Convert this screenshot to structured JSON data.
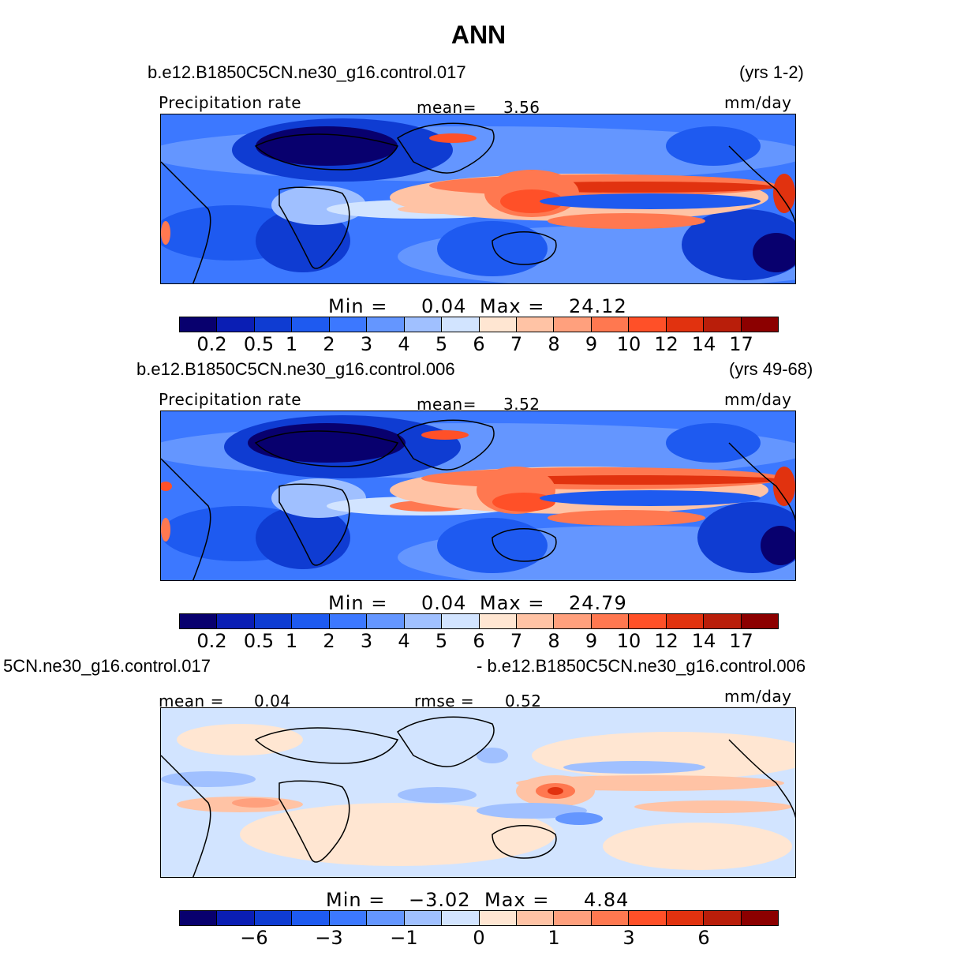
{
  "title": "ANN",
  "palette": [
    "#08006e",
    "#0a1eb4",
    "#0f3cd2",
    "#1e5af0",
    "#3c78ff",
    "#6496ff",
    "#a0c0ff",
    "#d2e4ff",
    "#ffe6d2",
    "#ffc3a5",
    "#ffa07d",
    "#ff7850",
    "#ff5028",
    "#e1320f",
    "#b91e0a",
    "#8c0000"
  ],
  "panel1": {
    "case": "b.e12.B1850C5CN.ne30_g16.control.017",
    "years": "(yrs 1-2)",
    "variable": "Precipitation  rate",
    "mean_label": "mean=",
    "mean_value": "3.56",
    "units": "mm/day",
    "min_label": "Min  =",
    "min_value": "0.04",
    "max_label": "Max  =",
    "max_value": "24.12",
    "ticks": [
      "0.2",
      "0.5",
      "1",
      "2",
      "3",
      "4",
      "5",
      "6",
      "7",
      "8",
      "9",
      "10",
      "12",
      "14",
      "17"
    ]
  },
  "panel2": {
    "case": "b.e12.B1850C5CN.ne30_g16.control.006",
    "years": "(yrs 49-68)",
    "variable": "Precipitation  rate",
    "mean_label": "mean=",
    "mean_value": "3.52",
    "units": "mm/day",
    "min_label": "Min  =",
    "min_value": "0.04",
    "max_label": "Max  =",
    "max_value": "24.79",
    "ticks": [
      "0.2",
      "0.5",
      "1",
      "2",
      "3",
      "4",
      "5",
      "6",
      "7",
      "8",
      "9",
      "10",
      "12",
      "14",
      "17"
    ]
  },
  "panel3": {
    "case_left": "5CN.ne30_g16.control.017",
    "case_right": "- b.e12.B1850C5CN.ne30_g16.control.006",
    "mean_label": "mean  =",
    "mean_value": "0.04",
    "rmse_label": "rmse  =",
    "rmse_value": "0.52",
    "units": "mm/day",
    "min_label": "Min  =",
    "min_value": "−3.02",
    "max_label": "Max  =",
    "max_value": "4.84",
    "ticks": [
      "−6",
      "−3",
      "−1",
      "0",
      "1",
      "3",
      "6"
    ]
  }
}
